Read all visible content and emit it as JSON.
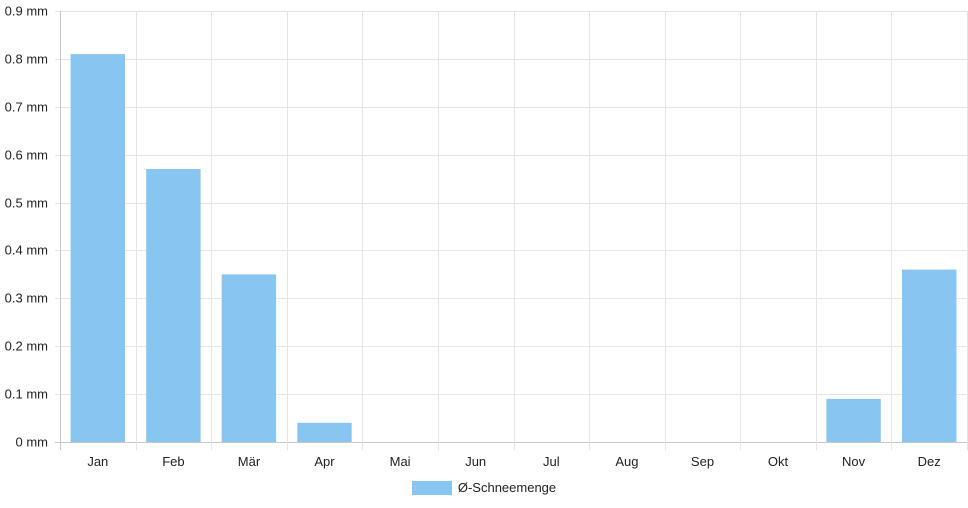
{
  "chart_data": {
    "type": "bar",
    "categories": [
      "Jan",
      "Feb",
      "Mär",
      "Apr",
      "Mai",
      "Jun",
      "Jul",
      "Aug",
      "Sep",
      "Okt",
      "Nov",
      "Dez"
    ],
    "series": [
      {
        "name": "Ø-Schneemenge",
        "values": [
          0.81,
          0.57,
          0.35,
          0.04,
          0,
          0,
          0,
          0,
          0,
          0,
          0.09,
          0.36
        ],
        "color": "#88c6f1"
      }
    ],
    "y_ticks": [
      "0 mm",
      "0.1 mm",
      "0.2 mm",
      "0.3 mm",
      "0.4 mm",
      "0.5 mm",
      "0.6 mm",
      "0.7 mm",
      "0.8 mm",
      "0.9 mm"
    ],
    "ylim": [
      0,
      0.9
    ],
    "unit": "mm",
    "grid": true,
    "legend_position": "bottom",
    "colors": {
      "grid": "#e5e5e5",
      "axis": "#c8c8c8",
      "text": "#222222"
    }
  }
}
